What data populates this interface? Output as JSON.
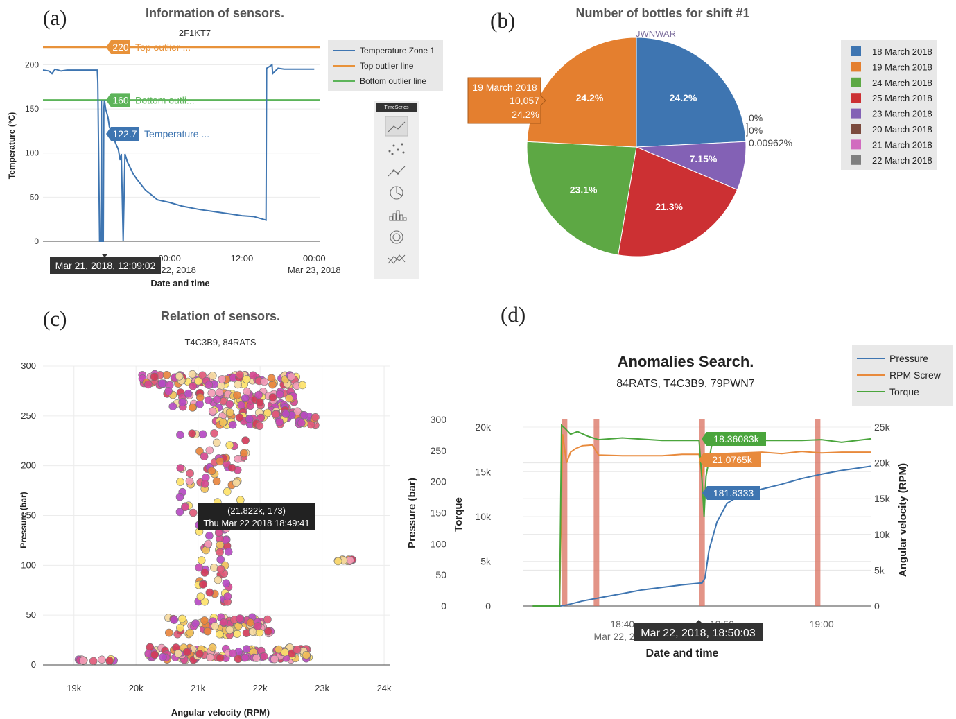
{
  "panels": {
    "a": {
      "letter": "(a)"
    },
    "b": {
      "letter": "(b)"
    },
    "c": {
      "letter": "(c)"
    },
    "d": {
      "letter": "(d)"
    }
  },
  "toolbar": {
    "title": "TimeSeries",
    "buttons": [
      "line-chart-icon",
      "scatter-chart-icon",
      "line-markers-icon",
      "pie-chart-icon",
      "bar-chart-icon",
      "donut-chart-icon",
      "multi-line-icon"
    ]
  },
  "chart_data": [
    {
      "id": "a",
      "type": "line",
      "title": "Information of sensors.",
      "subtitle": "2F1KT7",
      "xlabel": "Date and time",
      "ylabel": "Temperature (°C)",
      "ylim": [
        0,
        220
      ],
      "y_ticks": [
        0,
        50,
        100,
        150,
        200
      ],
      "x_ticks": [
        {
          "t": 0.0,
          "line1": "12:00",
          "line2": ""
        },
        {
          "t": 12.0,
          "line1": "00:00",
          "line2": "Mar 22, 2018"
        },
        {
          "t": 24.0,
          "line1": "12:00",
          "line2": ""
        },
        {
          "t": 36.0,
          "line1": "00:00",
          "line2": "Mar 23, 2018"
        }
      ],
      "x_unit": "hours since Mar 21, 2018 12:00",
      "legend": {
        "placement": "top-right",
        "entries": [
          "Temperature Zone 1",
          "Top outlier line",
          "Bottom outlier line"
        ]
      },
      "series": [
        {
          "name": "Temperature Zone 1",
          "color": "#3e75b1",
          "x": [
            -9.0,
            -8.0,
            -7.5,
            -7.0,
            -6.0,
            -5.0,
            -3.0,
            -1.0,
            0.0,
            0.1,
            0.4,
            0.6,
            0.7,
            0.8,
            1.0,
            1.1,
            1.2,
            1.4,
            1.6,
            1.8,
            2.0,
            3.0,
            3.5,
            3.8,
            4.0,
            4.3,
            4.6,
            5.0,
            6.0,
            6.5,
            8.0,
            10.0,
            12.0,
            14.0,
            17.0,
            20.0,
            22.0,
            24.0,
            26.0,
            27.0,
            28.0,
            28.1,
            29.0,
            29.1,
            30.0,
            31.0,
            33.0,
            36.0
          ],
          "y": [
            194,
            193,
            190,
            195,
            193,
            194,
            194,
            194,
            194,
            180,
            0,
            0,
            160,
            0,
            0,
            150,
            160,
            150,
            145,
            140,
            130,
            112,
            104,
            92,
            99,
            0,
            99,
            90,
            76,
            71,
            58,
            47,
            44,
            40,
            36,
            33,
            31,
            29,
            28,
            26,
            24,
            196,
            200,
            190,
            196,
            195,
            195,
            195
          ]
        },
        {
          "name": "Top outlier line",
          "color": "#e8923a",
          "value": 220
        },
        {
          "name": "Bottom outlier line",
          "color": "#5db45a",
          "value": 160
        }
      ],
      "hover_labels": [
        {
          "value": "220",
          "text": "Top outlier ..."
        },
        {
          "value": "160",
          "text": "Bottom outli..."
        },
        {
          "value": "122.7",
          "text": "Temperature ..."
        }
      ],
      "hover_tooltip": "Mar 21, 2018, 12:09:02"
    },
    {
      "id": "b",
      "type": "pie",
      "title": "Number of bottles for shift #1",
      "subtitle": "JWNWAR",
      "legend": {
        "placement": "right",
        "entries": [
          "18 March 2018",
          "19 March 2018",
          "24 March 2018",
          "25 March 2018",
          "23 March 2018",
          "20 March 2018",
          "21 March 2018",
          "22 March 2018"
        ]
      },
      "slices": [
        {
          "label": "18 March 2018",
          "value": 24.2,
          "display": "24.2%",
          "color": "#3e75b1"
        },
        {
          "label": "23 March 2018",
          "value": 7.15,
          "display": "7.15%",
          "color": "#8361b5"
        },
        {
          "label": "25 March 2018",
          "value": 21.3,
          "display": "21.3%",
          "color": "#cc3033"
        },
        {
          "label": "24 March 2018",
          "value": 23.1,
          "display": "23.1%",
          "color": "#5da844"
        },
        {
          "label": "19 March 2018",
          "value": 24.2,
          "display": "24.2%",
          "color": "#e47f2f"
        },
        {
          "label": "20 March 2018",
          "value": 0,
          "display": "0%",
          "color": "#7b4a3d"
        },
        {
          "label": "21 March 2018",
          "value": 0,
          "display": "0%",
          "color": "#d16bbf"
        },
        {
          "label": "22 March 2018",
          "value": 0.00962,
          "display": "0.00962%",
          "color": "#7f7f7f"
        }
      ],
      "outside_labels": [
        "0%",
        "0%",
        "0.00962%"
      ],
      "hover_box": {
        "line1": "19 March 2018",
        "line2": "10,057",
        "line3": "24.2%"
      }
    },
    {
      "id": "c",
      "type": "scatter",
      "title": "Relation of sensors.",
      "subtitle": "T4C3B9, 84RATS",
      "xlabel": "Angular velocity (RPM)",
      "ylabel": "Pressure (bar)",
      "xlim": [
        18500,
        24100
      ],
      "ylim": [
        0,
        300
      ],
      "x_ticks": [
        "19k",
        "20k",
        "21k",
        "22k",
        "23k",
        "24k"
      ],
      "x_tick_values": [
        19000,
        20000,
        21000,
        22000,
        23000,
        24000
      ],
      "y_ticks": [
        0,
        50,
        100,
        150,
        200,
        250,
        300
      ],
      "clusters": [
        {
          "x_range": [
            20100,
            22700
          ],
          "y_range": [
            280,
            292
          ],
          "count": 90
        },
        {
          "x_range": [
            20500,
            22600
          ],
          "y_range": [
            258,
            275
          ],
          "count": 80
        },
        {
          "x_range": [
            21200,
            22900
          ],
          "y_range": [
            240,
            256
          ],
          "count": 70
        },
        {
          "x_range": [
            20700,
            21800
          ],
          "y_range": [
            150,
            235
          ],
          "count": 60
        },
        {
          "x_range": [
            21000,
            21500
          ],
          "y_range": [
            60,
            150
          ],
          "count": 50
        },
        {
          "x_range": [
            20500,
            22200
          ],
          "y_range": [
            30,
            48
          ],
          "count": 80
        },
        {
          "x_range": [
            20200,
            22800
          ],
          "y_range": [
            5,
            18
          ],
          "count": 110
        },
        {
          "x_range": [
            19000,
            19700
          ],
          "y_range": [
            3,
            6
          ],
          "count": 10
        },
        {
          "x_range": [
            23000,
            23500
          ],
          "y_range": [
            104,
            106
          ],
          "count": 12
        }
      ],
      "colors": [
        "#d4488f",
        "#e05a7a",
        "#c84ab4",
        "#f0c05a",
        "#fde26a",
        "#e8853e",
        "#b54ac2",
        "#f29bb6",
        "#d13c5a",
        "#f5d9a0"
      ],
      "hover_tooltip": {
        "line1": "(21.822k, 173)",
        "line2": "Thu Mar 22 2018 18:49:41"
      }
    },
    {
      "id": "d",
      "type": "line",
      "title": "Anomalies Search.",
      "subtitle": "84RATS, T4C3B9, 79PWN7",
      "xlabel": "Date and time",
      "ylabel_left_outer": "Pressure (bar)",
      "ylabel_left_inner": "Torque",
      "ylabel_right": "Angular velocity (RPM)",
      "pressure_ticks": [
        0,
        50,
        100,
        150,
        200,
        250,
        300
      ],
      "torque_ticks": [
        "0",
        "5k",
        "10k",
        "15k",
        "20k"
      ],
      "torque_tick_values": [
        0,
        5000,
        10000,
        15000,
        20000
      ],
      "rpm_ticks": [
        "0",
        "5k",
        "10k",
        "15k",
        "20k",
        "25k"
      ],
      "rpm_tick_values": [
        0,
        5000,
        10000,
        15000,
        20000,
        25000
      ],
      "x_ticks": [
        {
          "t": 40,
          "line1": "18:40",
          "line2": "Mar 22, 2018"
        },
        {
          "t": 50,
          "line1": "18:50",
          "line2": ""
        },
        {
          "t": 60,
          "line1": "19:00",
          "line2": ""
        }
      ],
      "x_unit": "minutes after Mar 22, 2018 18:00",
      "xlim": [
        30.0,
        65.0
      ],
      "legend": {
        "placement": "top-right",
        "entries": [
          "Pressure",
          "RPM Screw",
          "Torque"
        ]
      },
      "anomaly_bands": [
        34.2,
        37.4,
        48.0,
        59.6
      ],
      "series": [
        {
          "name": "Pressure",
          "color": "#3e75b1",
          "axis": "pressure",
          "x": [
            31,
            33.8,
            34.5,
            36,
            38,
            40,
            42,
            44,
            46,
            48,
            48.3,
            48.7,
            49.5,
            50.5,
            52,
            54,
            56,
            58,
            60,
            62,
            65
          ],
          "y": [
            0,
            0,
            2,
            8,
            14,
            20,
            26,
            30,
            34,
            37,
            45,
            90,
            135,
            165,
            180,
            188,
            196,
            205,
            212,
            218,
            225
          ]
        },
        {
          "name": "RPM Screw",
          "color": "#e88a3c",
          "axis": "rpm",
          "x": [
            31,
            33.7,
            34.0,
            34.4,
            34.8,
            35.3,
            36,
            37,
            37.6,
            40,
            44,
            46,
            47.7,
            48.0,
            48.3,
            48.6,
            50,
            52,
            54,
            56,
            58,
            60,
            62,
            65
          ],
          "y": [
            0,
            0,
            24000,
            20000,
            21500,
            22000,
            22400,
            22500,
            21100,
            21000,
            21000,
            21200,
            21200,
            18000,
            21000,
            21200,
            21300,
            21400,
            21500,
            21300,
            21600,
            21400,
            21500,
            21500
          ]
        },
        {
          "name": "Torque",
          "color": "#4aa53c",
          "axis": "torque",
          "x": [
            31,
            33.7,
            33.9,
            34.3,
            34.8,
            35.5,
            36.5,
            37.6,
            40,
            44,
            47.7,
            48.0,
            48.2,
            48.4,
            49.0,
            50,
            54,
            58,
            60,
            62,
            65
          ],
          "y": [
            0,
            0,
            20200,
            19800,
            19200,
            19500,
            19000,
            18600,
            18800,
            18500,
            18500,
            14000,
            10000,
            14500,
            18200,
            18600,
            18500,
            18500,
            18600,
            18300,
            18700
          ]
        }
      ],
      "hover_labels": [
        {
          "text": "18.36083k",
          "series": "Torque"
        },
        {
          "text": "21.0765k",
          "series": "RPM Screw"
        },
        {
          "text": "181.8333",
          "series": "Pressure"
        }
      ],
      "hover_tooltip": "Mar 22, 2018, 18:50:03"
    }
  ]
}
